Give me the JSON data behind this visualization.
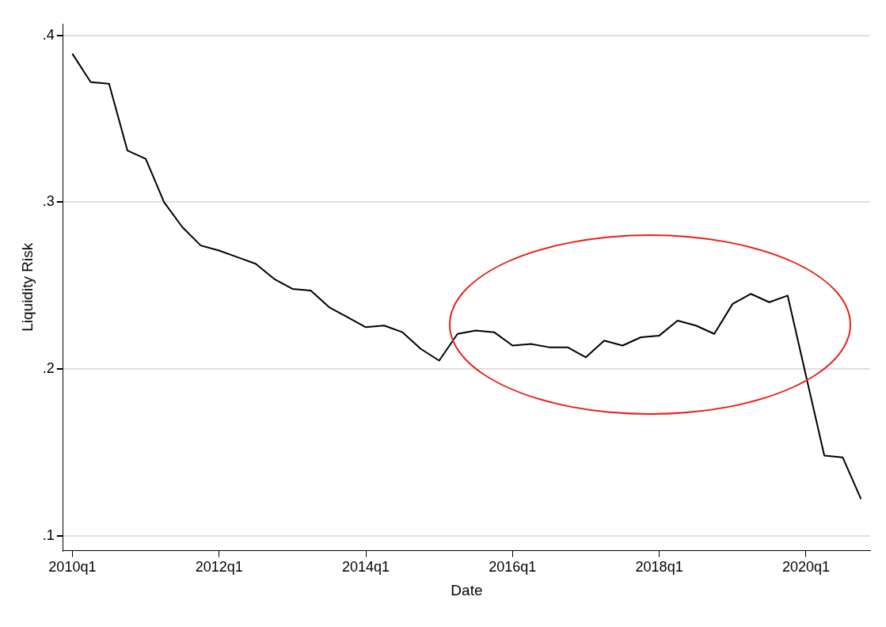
{
  "chart_data": {
    "type": "line",
    "xlabel": "Date",
    "ylabel": "Liquidity Risk",
    "categories": [
      "2010q1",
      null,
      null,
      null,
      null,
      null,
      null,
      null,
      "2012q1",
      null,
      null,
      null,
      null,
      null,
      null,
      null,
      "2014q1",
      null,
      null,
      null,
      null,
      null,
      null,
      null,
      "2016q1",
      null,
      null,
      null,
      null,
      null,
      null,
      null,
      "2018q1",
      null,
      null,
      null,
      null,
      null,
      null,
      null,
      "2020q1",
      null,
      null,
      null
    ],
    "values": [
      0.389,
      0.372,
      0.371,
      0.331,
      0.326,
      0.3,
      0.285,
      0.274,
      0.271,
      0.267,
      0.263,
      0.254,
      0.248,
      0.247,
      0.237,
      0.231,
      0.225,
      0.226,
      0.222,
      0.212,
      0.205,
      0.221,
      0.223,
      0.222,
      0.214,
      0.215,
      0.213,
      0.213,
      0.207,
      0.217,
      0.214,
      0.219,
      0.22,
      0.229,
      0.226,
      0.221,
      0.239,
      0.245,
      0.24,
      0.244,
      0.196,
      0.148,
      0.147,
      0.122
    ],
    "color": "#000000",
    "marker": "none",
    "grid": "y",
    "ylim": [
      0.091,
      0.407
    ],
    "yticks": [
      {
        "value": 0.1,
        "label": ".1"
      },
      {
        "value": 0.2,
        "label": ".2"
      },
      {
        "value": 0.3,
        "label": ".3"
      },
      {
        "value": 0.4,
        "label": ".4"
      }
    ]
  }
}
